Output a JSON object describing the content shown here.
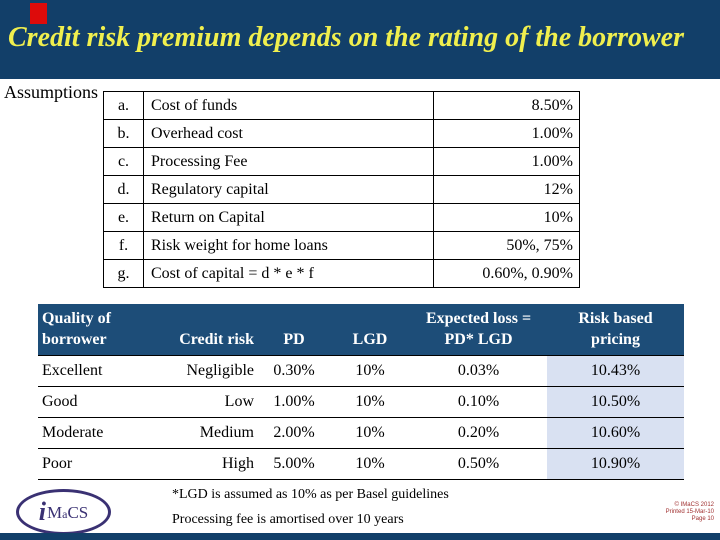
{
  "title": "Credit risk premium depends on the rating of the borrower",
  "assumptions": {
    "label": "Assumptions",
    "rows": [
      {
        "key": "a.",
        "desc": "Cost of funds",
        "value": "8.50%"
      },
      {
        "key": "b.",
        "desc": "Overhead cost",
        "value": "1.00%"
      },
      {
        "key": "c.",
        "desc": "Processing Fee",
        "value": "1.00%"
      },
      {
        "key": "d.",
        "desc": "Regulatory capital",
        "value": "12%"
      },
      {
        "key": "e.",
        "desc": "Return on Capital",
        "value": "10%"
      },
      {
        "key": "f.",
        "desc": "Risk weight for home loans",
        "value": "50%, 75%"
      },
      {
        "key": "g.",
        "desc": "Cost of capital = d * e * f",
        "value": "0.60%, 0.90%"
      }
    ]
  },
  "pricing_table": {
    "headers": [
      {
        "line1": "Quality of",
        "line2": "borrower"
      },
      {
        "line1": "",
        "line2": "Credit risk"
      },
      {
        "line1": "",
        "line2": "PD"
      },
      {
        "line1": "",
        "line2": "LGD"
      },
      {
        "line1": "Expected loss =",
        "line2": "PD* LGD"
      },
      {
        "line1": "Risk based",
        "line2": "pricing"
      }
    ],
    "rows": [
      {
        "quality": "Excellent",
        "credit_risk": "Negligible",
        "pd": "0.30%",
        "lgd": "10%",
        "expected_loss": "0.03%",
        "risk_based_pricing": "10.43%"
      },
      {
        "quality": "Good",
        "credit_risk": "Low",
        "pd": "1.00%",
        "lgd": "10%",
        "expected_loss": "0.10%",
        "risk_based_pricing": "10.50%"
      },
      {
        "quality": "Moderate",
        "credit_risk": "Medium",
        "pd": "2.00%",
        "lgd": "10%",
        "expected_loss": "0.20%",
        "risk_based_pricing": "10.60%"
      },
      {
        "quality": "Poor",
        "credit_risk": "High",
        "pd": "5.00%",
        "lgd": "10%",
        "expected_loss": "0.50%",
        "risk_based_pricing": "10.90%"
      }
    ]
  },
  "footnotes": {
    "line1": "*LGD is assumed as 10% as per Basel guidelines",
    "line2": "Processing fee is amortised over 10 years"
  },
  "logo": {
    "parts": [
      "i",
      "M",
      "a",
      "CS"
    ]
  },
  "footer_meta": {
    "line1": "© IMaCS 2012",
    "line2": "Printed 15-Mar-10",
    "line3": "Page 10"
  },
  "colors": {
    "navy_bar": "#123f69",
    "table_header_navy": "#1d4d78",
    "title_yellow": "#f0ef4e",
    "highlight_column_bg": "#d9e1f2",
    "accent_red": "#dd0b0b",
    "meta_text_red": "#a03030",
    "logo_indigo": "#3a3173"
  }
}
